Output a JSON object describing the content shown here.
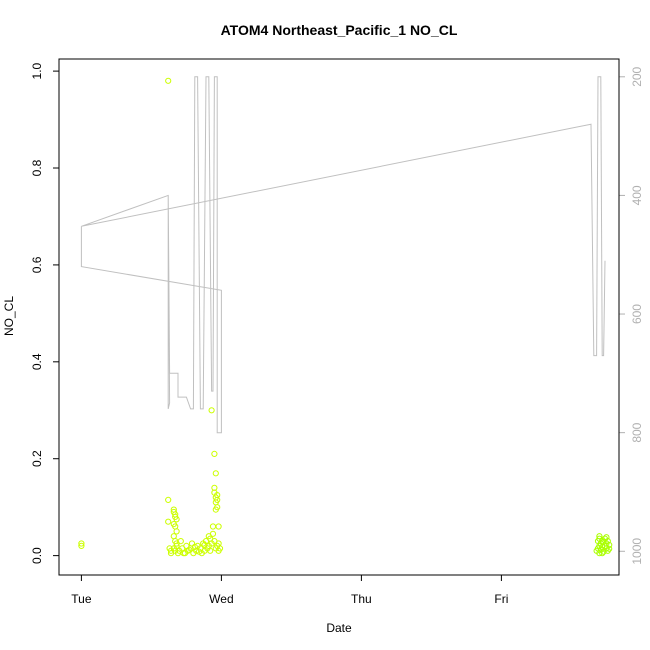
{
  "chart_data": {
    "type": "scatter",
    "title": "ATOM4 Northeast_Pacific_1 NO_CL",
    "xlabel": "Date",
    "ylabel": "NO_CL",
    "x_ticks": [
      {
        "label": "Tue",
        "day": 0
      },
      {
        "label": "Wed",
        "day": 1
      },
      {
        "label": "Thu",
        "day": 2
      },
      {
        "label": "Fri",
        "day": 3
      }
    ],
    "xlim_days": [
      -0.16,
      3.84
    ],
    "ylim": [
      -0.04,
      1.025
    ],
    "y_ticks": [
      0.0,
      0.2,
      0.4,
      0.6,
      0.8,
      1.0
    ],
    "y2_ticks": [
      200,
      400,
      600,
      800,
      1000
    ],
    "y2lim": [
      1040,
      170
    ],
    "y2_direction": "reversed",
    "grid": false,
    "series": [
      {
        "kind": "points",
        "color": "#ccff00",
        "points": [
          [
            0.0,
            0.02
          ],
          [
            0.0,
            0.025
          ],
          [
            0.62,
            0.98
          ],
          [
            0.62,
            0.115
          ],
          [
            0.62,
            0.07
          ],
          [
            0.63,
            0.015
          ],
          [
            0.64,
            0.01
          ],
          [
            0.64,
            0.005
          ],
          [
            0.66,
            0.095
          ],
          [
            0.66,
            0.09
          ],
          [
            0.67,
            0.085
          ],
          [
            0.67,
            0.08
          ],
          [
            0.68,
            0.075
          ],
          [
            0.66,
            0.065
          ],
          [
            0.67,
            0.06
          ],
          [
            0.68,
            0.05
          ],
          [
            0.66,
            0.04
          ],
          [
            0.67,
            0.03
          ],
          [
            0.68,
            0.025
          ],
          [
            0.66,
            0.015
          ],
          [
            0.67,
            0.01
          ],
          [
            0.69,
            0.005
          ],
          [
            0.7,
            0.01
          ],
          [
            0.72,
            0.015
          ],
          [
            0.73,
            0.005
          ],
          [
            0.75,
            0.02
          ],
          [
            0.76,
            0.01
          ],
          [
            0.78,
            0.015
          ],
          [
            0.79,
            0.025
          ],
          [
            0.8,
            0.005
          ],
          [
            0.82,
            0.01
          ],
          [
            0.83,
            0.02
          ],
          [
            0.85,
            0.015
          ],
          [
            0.86,
            0.005
          ],
          [
            0.87,
            0.025
          ],
          [
            0.88,
            0.01
          ],
          [
            0.89,
            0.03
          ],
          [
            0.9,
            0.015
          ],
          [
            0.91,
            0.04
          ],
          [
            0.91,
            0.02
          ],
          [
            0.92,
            0.035
          ],
          [
            0.92,
            0.01
          ],
          [
            0.93,
            0.025
          ],
          [
            0.93,
            0.3
          ],
          [
            0.94,
            0.06
          ],
          [
            0.94,
            0.045
          ],
          [
            0.95,
            0.03
          ],
          [
            0.95,
            0.21
          ],
          [
            0.95,
            0.14
          ],
          [
            0.95,
            0.13
          ],
          [
            0.96,
            0.17
          ],
          [
            0.96,
            0.12
          ],
          [
            0.96,
            0.11
          ],
          [
            0.96,
            0.095
          ],
          [
            0.97,
            0.125
          ],
          [
            0.97,
            0.115
          ],
          [
            0.97,
            0.1
          ],
          [
            0.96,
            0.015
          ],
          [
            0.97,
            0.02
          ],
          [
            0.98,
            0.06
          ],
          [
            0.98,
            0.01
          ],
          [
            0.98,
            0.025
          ],
          [
            0.99,
            0.015
          ],
          [
            0.68,
            0.02
          ],
          [
            0.71,
            0.03
          ],
          [
            0.74,
            0.005
          ],
          [
            0.77,
            0.012
          ],
          [
            0.81,
            0.018
          ],
          [
            0.84,
            0.008
          ],
          [
            0.88,
            0.022
          ]
        ]
      },
      {
        "kind": "points",
        "color": "#aaff00",
        "points": [
          [
            3.68,
            0.01
          ],
          [
            3.69,
            0.015
          ],
          [
            3.69,
            0.03
          ],
          [
            3.7,
            0.035
          ],
          [
            3.7,
            0.02
          ],
          [
            3.7,
            0.005
          ],
          [
            3.71,
            0.025
          ],
          [
            3.71,
            0.012
          ],
          [
            3.72,
            0.03
          ],
          [
            3.72,
            0.018
          ],
          [
            3.73,
            0.008
          ],
          [
            3.73,
            0.028
          ],
          [
            3.74,
            0.02
          ],
          [
            3.74,
            0.035
          ],
          [
            3.75,
            0.015
          ],
          [
            3.75,
            0.025
          ],
          [
            3.76,
            0.01
          ],
          [
            3.76,
            0.03
          ],
          [
            3.77,
            0.022
          ],
          [
            3.77,
            0.014
          ],
          [
            3.7,
            0.04
          ],
          [
            3.72,
            0.005
          ],
          [
            3.75,
            0.038
          ]
        ]
      },
      {
        "kind": "line",
        "axis": "right",
        "color": "#c0c0c0",
        "points": [
          [
            0.0,
            452
          ],
          [
            0.0,
            520
          ],
          [
            1.0,
            560
          ],
          [
            1.0,
            800
          ],
          [
            0.97,
            800
          ],
          [
            0.97,
            200
          ],
          [
            0.95,
            200
          ],
          [
            0.94,
            730
          ],
          [
            0.93,
            730
          ],
          [
            0.91,
            200
          ],
          [
            0.89,
            200
          ],
          [
            0.87,
            760
          ],
          [
            0.85,
            760
          ],
          [
            0.83,
            200
          ],
          [
            0.81,
            200
          ],
          [
            0.8,
            760
          ],
          [
            0.78,
            760
          ],
          [
            0.75,
            740
          ],
          [
            0.69,
            740
          ],
          [
            0.69,
            700
          ],
          [
            0.63,
            700
          ],
          [
            0.62,
            400
          ],
          [
            0.63,
            750
          ],
          [
            0.62,
            760
          ],
          [
            0.62,
            400
          ],
          [
            0.0,
            452
          ],
          [
            0.0,
            452
          ],
          [
            3.64,
            280
          ],
          [
            3.66,
            670
          ],
          [
            3.68,
            670
          ],
          [
            3.69,
            200
          ],
          [
            3.71,
            200
          ],
          [
            3.72,
            670
          ],
          [
            3.73,
            670
          ],
          [
            3.74,
            510
          ]
        ]
      }
    ]
  }
}
